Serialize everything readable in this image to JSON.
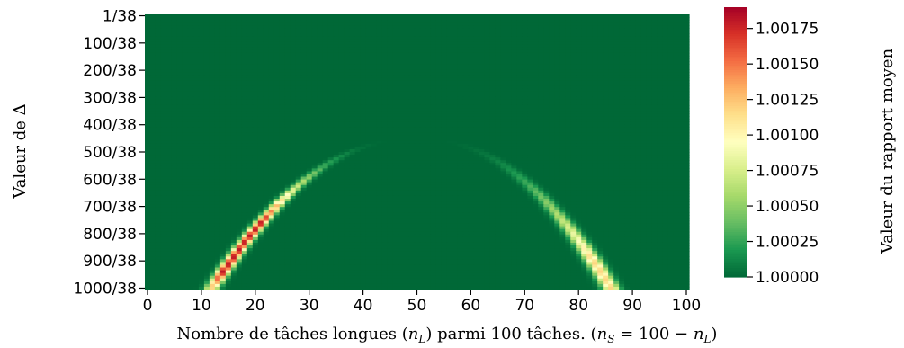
{
  "chart_data": {
    "type": "heatmap",
    "title": "",
    "xlabel": "Nombre de tâches longues (n_L) parmi 100 tâches. (n_S = 100 − n_L)",
    "xlabel_parts": {
      "text1": "Nombre de tâches longues (",
      "nL_n": "n",
      "nL_sub": "L",
      "text2": ") parmi 100 tâches. (",
      "nS_n": "n",
      "nS_sub": "S",
      "eq": " = 100 − ",
      "nL2_n": "n",
      "nL2_sub": "L",
      "close": ")"
    },
    "ylabel": "Valeur de Δ",
    "colorbar_label": "Valeur du rapport moyen",
    "x_range": [
      0,
      100
    ],
    "x_ticks": [
      0,
      10,
      20,
      30,
      40,
      50,
      60,
      70,
      80,
      90,
      100
    ],
    "y_tick_labels": [
      "1/38",
      "100/38",
      "200/38",
      "300/38",
      "400/38",
      "500/38",
      "600/38",
      "700/38",
      "800/38",
      "900/38",
      "1000/38"
    ],
    "colorbar_range": [
      1.0,
      1.0019
    ],
    "colorbar_ticks": [
      1.0,
      1.00025,
      1.0005,
      1.00075,
      1.001,
      1.00125,
      1.0015,
      1.00175
    ],
    "colorbar_tick_labels": [
      "1.00000",
      "1.00025",
      "1.00050",
      "1.00075",
      "1.00100",
      "1.00125",
      "1.00150",
      "1.00175"
    ],
    "colormap": "RdYlGn_r",
    "colormap_stops": [
      "#006837",
      "#1a9850",
      "#66bd63",
      "#a6d96a",
      "#d9ef8b",
      "#ffffbf",
      "#fee08b",
      "#fdae61",
      "#f46d43",
      "#d73027",
      "#a50026"
    ],
    "rows": 100,
    "cols": 101,
    "data_description": "Approximate reconstruction: value is 1.0 everywhere except two curved ridges emerging near n_L≈50 at Δ≈470/38 and curving outward to n_L≈12 (peak ≈1.0018) and n_L≈86 (peak ≈1.0012) at Δ=1000/38.",
    "ridges": [
      {
        "side": "left",
        "apex_x": 48,
        "apex_delta": 455,
        "end_x": 12,
        "end_delta": 1000,
        "peak_value": 1.0018,
        "peak_delta": 750
      },
      {
        "side": "right",
        "apex_x": 52,
        "apex_delta": 455,
        "end_x": 86,
        "end_delta": 1000,
        "peak_value": 1.00118,
        "peak_delta": 880
      }
    ]
  }
}
